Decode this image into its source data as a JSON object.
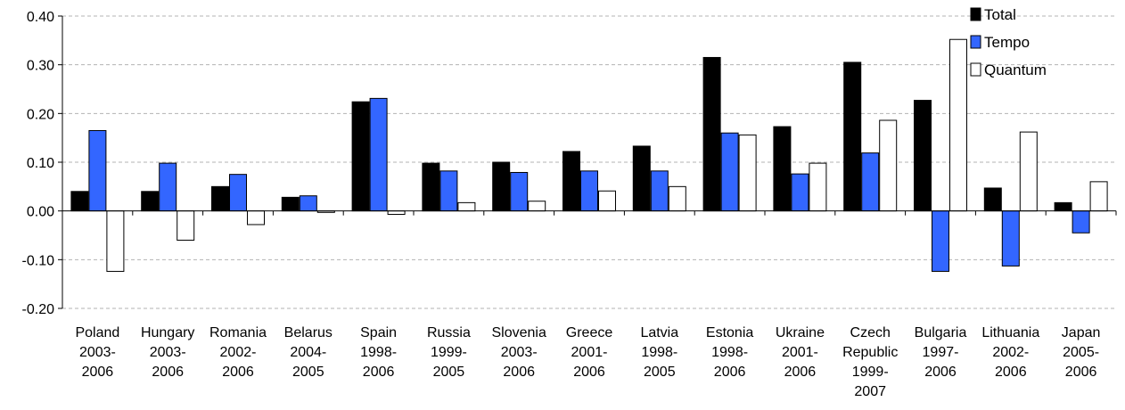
{
  "chart_data": {
    "type": "bar",
    "categories": [
      [
        "Poland",
        "2003-",
        "2006"
      ],
      [
        "Hungary",
        "2003-",
        "2006"
      ],
      [
        "Romania",
        "2002-",
        "2006"
      ],
      [
        "Belarus",
        "2004-",
        "2005"
      ],
      [
        "Spain",
        "1998-",
        "2006"
      ],
      [
        "Russia",
        "1999-",
        "2005"
      ],
      [
        "Slovenia",
        "2003-",
        "2006"
      ],
      [
        "Greece",
        "2001-",
        "2006"
      ],
      [
        "Latvia",
        "1998-",
        "2005"
      ],
      [
        "Estonia",
        "1998-",
        "2006"
      ],
      [
        "Ukraine",
        "2001-",
        "2006"
      ],
      [
        "Czech",
        "Republic",
        "1999-",
        "2007"
      ],
      [
        "Bulgaria",
        "1997-",
        "2006"
      ],
      [
        "Lithuania",
        "2002-",
        "2006"
      ],
      [
        "Japan",
        "2005-",
        "2006"
      ]
    ],
    "series": [
      {
        "name": "Total",
        "color": "#000000",
        "values": [
          0.04,
          0.04,
          0.05,
          0.028,
          0.224,
          0.098,
          0.1,
          0.122,
          0.133,
          0.315,
          0.173,
          0.305,
          0.227,
          0.047,
          0.017
        ]
      },
      {
        "name": "Tempo",
        "color": "#3366ff",
        "values": [
          0.165,
          0.098,
          0.075,
          0.031,
          0.231,
          0.082,
          0.079,
          0.082,
          0.082,
          0.16,
          0.076,
          0.119,
          -0.124,
          -0.113,
          -0.045
        ]
      },
      {
        "name": "Quantum",
        "color": "#ffffff",
        "values": [
          -0.124,
          -0.06,
          -0.028,
          -0.003,
          -0.007,
          0.017,
          0.02,
          0.041,
          0.05,
          0.156,
          0.098,
          0.186,
          0.352,
          0.162,
          0.06
        ]
      }
    ],
    "yticks": [
      "0.40",
      "0.30",
      "0.20",
      "0.10",
      "0.00",
      "-0.10",
      "-0.20"
    ],
    "ylim": [
      -0.2,
      0.4
    ],
    "grid": true,
    "legend": "top-right"
  }
}
